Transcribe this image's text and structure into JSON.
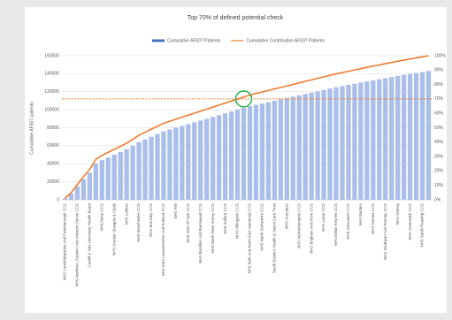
{
  "chart_data": {
    "type": "bar_line",
    "title": "Top 70% of defined potential check",
    "y_label": "Cumulative AF007 patients",
    "categories": [
      "NHS Cambridgeshire And Peterborough CCG",
      null,
      "NHS Northern, Eastern And Western Devon CCG",
      null,
      "Cardiff & Vale University Health Board",
      null,
      "NHS Nene CCG",
      null,
      "NHS Greater Glasgow & Clyde",
      null,
      "NHS Lothian",
      null,
      "NHS Manchester CCG",
      null,
      "NHS Barnsley CCG",
      null,
      "NHS East Leicestershire And Rutland CCG",
      null,
      "NHS Fife",
      null,
      "NHS Vale Of York CCG",
      null,
      "NHS Basildon And Brentwood CCG",
      null,
      "NHS North West Surrey CCG",
      null,
      "NHS Salford CCG",
      null,
      "NHS Hillingdon CCG",
      null,
      "NHS Bath And North East Somerset CCG",
      null,
      "NHS North Derbyshire CCG",
      null,
      "South Eastern Health & Social Care Trust",
      null,
      "NHS Grampian",
      null,
      "NHS Wolverhampton CCG",
      null,
      "NHS Brighton And Hove CCG",
      null,
      "NHS Luton CCG",
      null,
      "NHS Milton Keynes CCG",
      null,
      "NHS Doncaster CCG",
      null,
      "NHS Borders",
      null,
      "NHS Harrow CCG",
      null,
      "NHS Southport And Formby CCG",
      null,
      "NHS Orkney",
      null,
      "NHS Greenwich CCG",
      null,
      "NHS South Reading CCG",
      null
    ],
    "series": [
      {
        "name": "Cumulative AF007 Patients",
        "type": "bar",
        "color": "#a9bee8",
        "legend_color": "#4472c4",
        "values": [
          1500,
          7000,
          15000,
          23000,
          30000,
          40000,
          44000,
          47000,
          50000,
          53000,
          56000,
          60000,
          64000,
          67000,
          70000,
          73000,
          76000,
          78000,
          80000,
          82000,
          84000,
          86000,
          88000,
          90000,
          92000,
          94000,
          96000,
          98000,
          100000,
          102000,
          104000,
          105500,
          107000,
          108500,
          110000,
          111500,
          113000,
          114500,
          116000,
          117500,
          119000,
          120500,
          122000,
          123500,
          125000,
          126300,
          127600,
          128900,
          130200,
          131500,
          132700,
          133900,
          135100,
          136300,
          137500,
          138600,
          139700,
          140800,
          141900,
          143000
        ]
      },
      {
        "name": "Cumulative Contribution AF007 Patients",
        "type": "line",
        "axis": "y2",
        "color": "#ed7d31",
        "values": [
          1.0,
          4.9,
          10.5,
          16.1,
          21.0,
          28.0,
          30.8,
          32.9,
          35.0,
          37.1,
          39.2,
          42.0,
          44.8,
          46.9,
          49.0,
          51.0,
          53.1,
          54.5,
          55.9,
          57.3,
          58.7,
          60.1,
          61.5,
          62.9,
          64.3,
          65.7,
          67.1,
          68.5,
          69.9,
          71.3,
          72.7,
          73.8,
          74.8,
          75.9,
          76.9,
          78.0,
          79.0,
          80.1,
          81.1,
          82.2,
          83.2,
          84.3,
          85.3,
          86.4,
          87.4,
          88.3,
          89.2,
          90.1,
          91.0,
          92.0,
          92.8,
          93.6,
          94.5,
          95.3,
          96.2,
          96.9,
          97.7,
          98.5,
          99.2,
          100
        ]
      }
    ],
    "reference_line": {
      "axis": "y2",
      "value": 70,
      "color": "#ed7d31"
    },
    "highlight_color": "#2db34a",
    "ylim": [
      0,
      160000
    ],
    "yticks": [
      0,
      20000,
      40000,
      60000,
      80000,
      100000,
      120000,
      140000,
      160000
    ],
    "y2lim": [
      0,
      100
    ],
    "y2ticks": [
      {
        "value": 0,
        "label": "0%"
      },
      {
        "value": 10,
        "label": "10%"
      },
      {
        "value": 20,
        "label": "20%"
      },
      {
        "value": 30,
        "label": "30%"
      },
      {
        "value": 40,
        "label": "40%"
      },
      {
        "value": 50,
        "label": "50%"
      },
      {
        "value": 60,
        "label": "60%"
      },
      {
        "value": 70,
        "label": "70%"
      },
      {
        "value": 80,
        "label": "80%"
      },
      {
        "value": 90,
        "label": "90%"
      },
      {
        "value": 100,
        "label": "100%"
      }
    ],
    "grid": true,
    "legend": "top"
  }
}
